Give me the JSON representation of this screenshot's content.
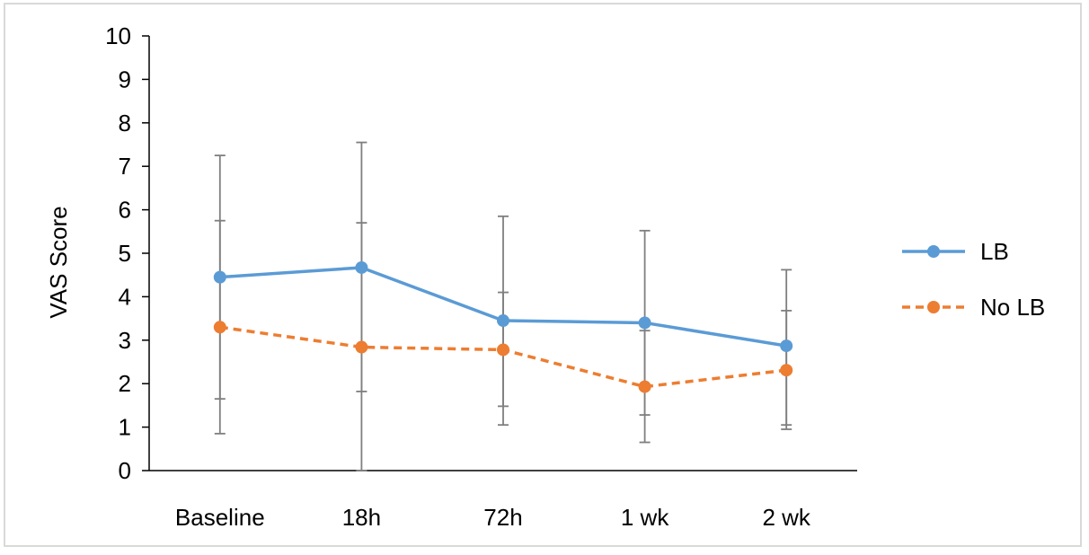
{
  "chart_data": {
    "type": "line",
    "categories": [
      "Baseline",
      "18h",
      "72h",
      "1 wk",
      "2 wk"
    ],
    "ylabel": "VAS Score",
    "xlabel": "",
    "ylim": [
      0,
      10
    ],
    "y_ticks": [
      "0",
      "1",
      "2",
      "3",
      "4",
      "5",
      "6",
      "7",
      "8",
      "9",
      "10"
    ],
    "grid": false,
    "legend_position": "right",
    "series": [
      {
        "name": "LB",
        "color": "#5b9bd5",
        "line_style": "solid",
        "values": [
          4.45,
          4.67,
          3.45,
          3.4,
          2.87
        ],
        "error_low": [
          1.65,
          1.82,
          1.05,
          1.28,
          1.05
        ],
        "error_high": [
          7.25,
          7.55,
          5.85,
          5.52,
          4.62
        ]
      },
      {
        "name": "No LB",
        "color": "#ed7d31",
        "line_style": "dashed",
        "values": [
          3.3,
          2.84,
          2.78,
          1.93,
          2.31
        ],
        "error_low": [
          0.85,
          0.0,
          1.48,
          0.65,
          0.95
        ],
        "error_high": [
          5.75,
          5.7,
          4.1,
          3.22,
          3.68
        ]
      }
    ]
  }
}
